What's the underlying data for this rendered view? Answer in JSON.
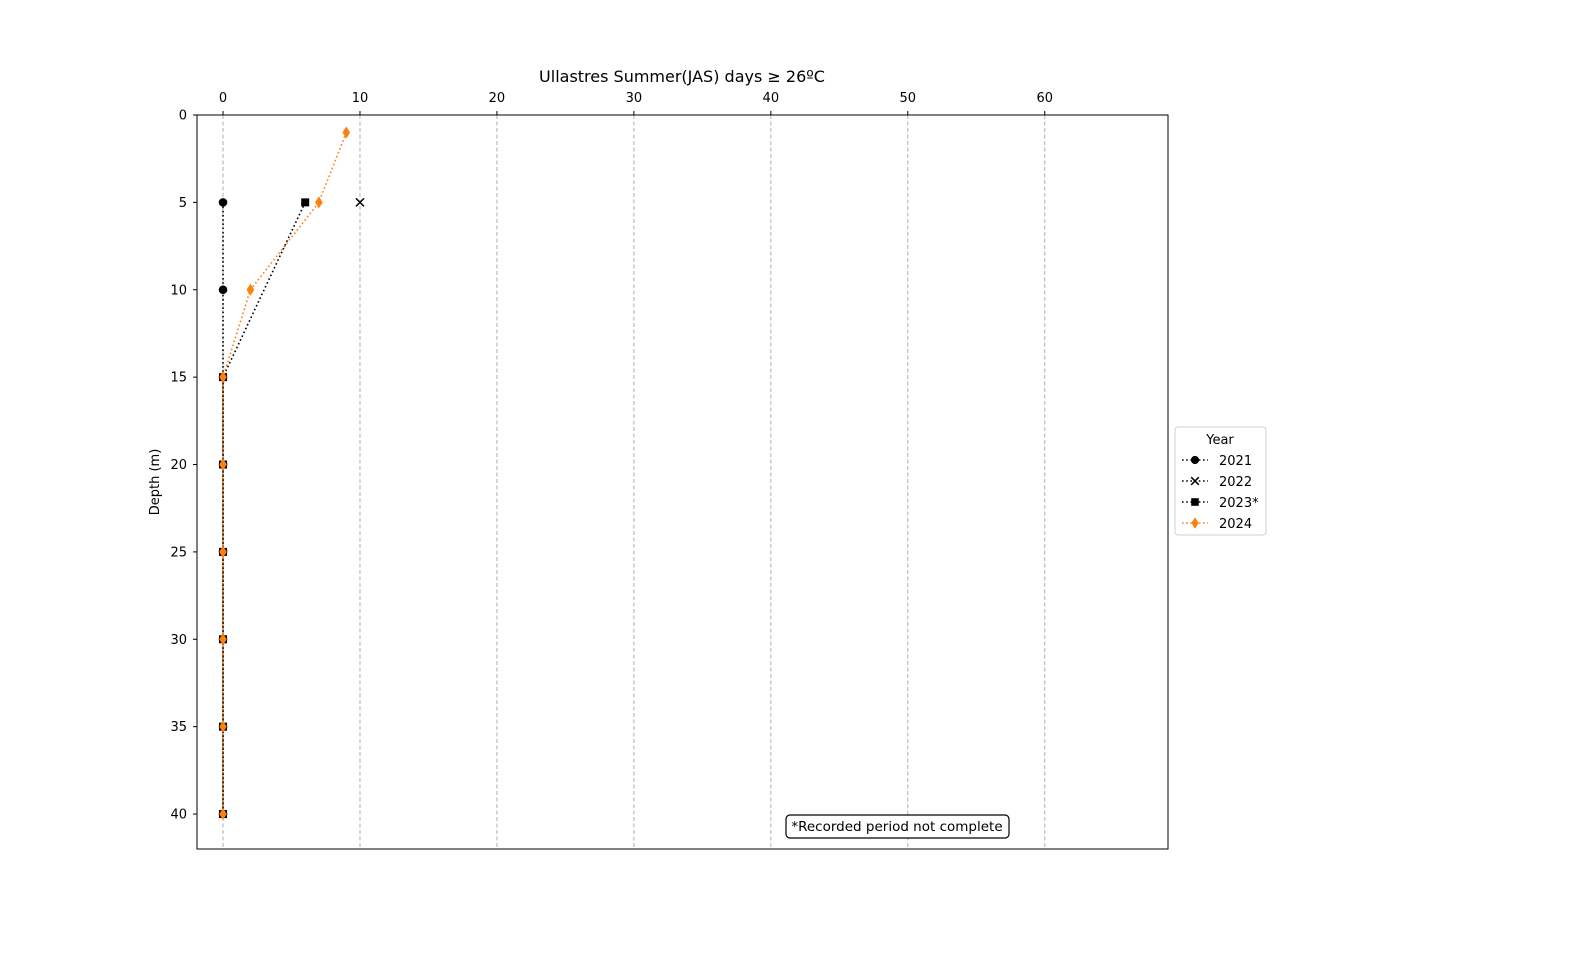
{
  "chart_data": {
    "type": "line",
    "title": "Ullastres Summer(JAS) days ≥ 26ºC",
    "xlabel": "",
    "ylabel": "Depth (m)",
    "x_axis_position": "top",
    "xlim": [
      -1.9,
      69
    ],
    "ylim": [
      42,
      0
    ],
    "y_inverted": true,
    "xticks": [
      0,
      10,
      20,
      30,
      40,
      50,
      60
    ],
    "yticks": [
      0,
      5,
      10,
      15,
      20,
      25,
      30,
      35,
      40
    ],
    "grid": "x-axis dashed",
    "legend": {
      "title": "Year",
      "placement": "outside right, center"
    },
    "annotation": "*Recorded period not complete",
    "series": [
      {
        "name": "2021",
        "marker": "circle",
        "color": "#000000",
        "points": [
          {
            "x": 0,
            "y": 5
          },
          {
            "x": 0,
            "y": 10
          },
          {
            "x": 0,
            "y": 15
          },
          {
            "x": 0,
            "y": 20
          },
          {
            "x": 0,
            "y": 25
          },
          {
            "x": 0,
            "y": 30
          },
          {
            "x": 0,
            "y": 35
          },
          {
            "x": 0,
            "y": 40
          }
        ]
      },
      {
        "name": "2022",
        "marker": "x",
        "color": "#000000",
        "points": [
          {
            "x": 10,
            "y": 5
          }
        ]
      },
      {
        "name": "2023*",
        "marker": "square",
        "color": "#000000",
        "points": [
          {
            "x": 6,
            "y": 5
          },
          {
            "x": 0,
            "y": 15
          },
          {
            "x": 0,
            "y": 20
          },
          {
            "x": 0,
            "y": 25
          },
          {
            "x": 0,
            "y": 30
          },
          {
            "x": 0,
            "y": 35
          },
          {
            "x": 0,
            "y": 40
          }
        ]
      },
      {
        "name": "2024",
        "marker": "diamond",
        "color": "#ff7f0e",
        "points": [
          {
            "x": 9,
            "y": 1
          },
          {
            "x": 7,
            "y": 5
          },
          {
            "x": 2,
            "y": 10
          },
          {
            "x": 0,
            "y": 15
          },
          {
            "x": 0,
            "y": 20
          },
          {
            "x": 0,
            "y": 25
          },
          {
            "x": 0,
            "y": 30
          },
          {
            "x": 0,
            "y": 35
          },
          {
            "x": 0,
            "y": 40
          }
        ]
      }
    ]
  }
}
